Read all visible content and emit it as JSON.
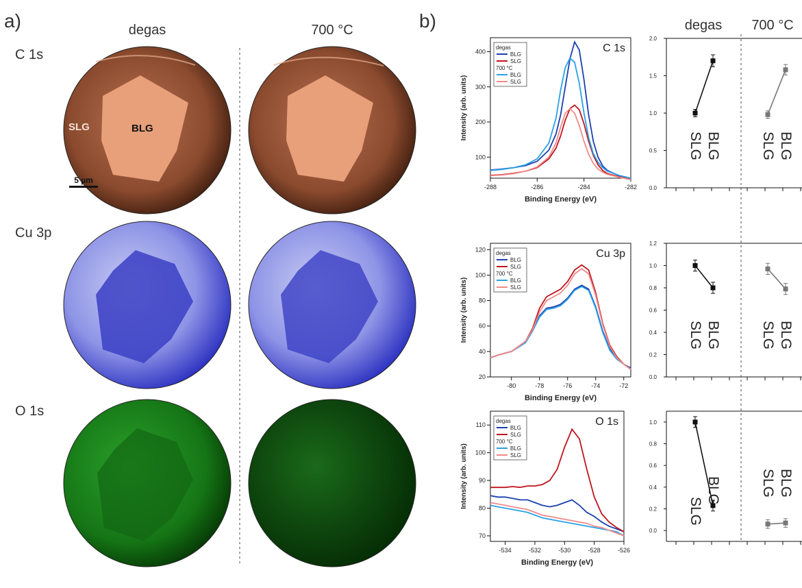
{
  "panel_a": {
    "label": "a)",
    "columns": [
      "degas",
      "700 °C"
    ],
    "rows": [
      "C 1s",
      "Cu 3p",
      "O 1s"
    ],
    "region_labels": {
      "slg": "SLG",
      "blg": "BLG"
    },
    "scale_bar": "5 µm",
    "colors": {
      "c1s": "#d98a5a",
      "cu3p": "#3a3fd0",
      "o1s": "#1f8f1f"
    }
  },
  "panel_b": {
    "label": "b)",
    "columns": [
      "degas",
      "700 °C"
    ],
    "xlabel": "Binding Energy (eV)",
    "ylabel": "Intensity (arb. units)",
    "legend": {
      "group1": "degas",
      "group2": "700 °C",
      "items": [
        "BLG",
        "SLG",
        "BLG",
        "SLG"
      ],
      "colors": [
        "#1a3fb0",
        "#c0141c",
        "#2aa0e6",
        "#f08a8a"
      ]
    },
    "x_labels": [
      "SLG",
      "BLG"
    ]
  },
  "chart_data": [
    {
      "type": "line",
      "title": "C 1s",
      "xlabel": "Binding Energy (eV)",
      "ylabel": "Intensity (arb. units)",
      "xlim": [
        -288,
        -282
      ],
      "ylim": [
        40,
        440
      ],
      "xticks": [
        -288,
        -286,
        -284,
        -282
      ],
      "yticks": [
        100,
        200,
        300,
        400
      ],
      "series": [
        {
          "name": "BLG",
          "group": "degas",
          "color": "#1a3fb0",
          "x": [
            -288,
            -287.5,
            -287,
            -286.5,
            -286,
            -285.5,
            -285.2,
            -285,
            -284.8,
            -284.6,
            -284.4,
            -284.2,
            -284,
            -283.8,
            -283.6,
            -283.4,
            -283.2,
            -283,
            -282.5,
            -282
          ],
          "y": [
            63,
            66,
            70,
            76,
            88,
            120,
            165,
            220,
            300,
            380,
            428,
            405,
            320,
            220,
            145,
            100,
            75,
            62,
            47,
            38
          ]
        },
        {
          "name": "SLG",
          "group": "degas",
          "color": "#c0141c",
          "x": [
            -288,
            -287.5,
            -287,
            -286.5,
            -286,
            -285.5,
            -285.2,
            -285,
            -284.8,
            -284.6,
            -284.4,
            -284.2,
            -284,
            -283.8,
            -283.6,
            -283.4,
            -283.2,
            -283,
            -282.5,
            -282
          ],
          "y": [
            48,
            50,
            54,
            60,
            70,
            95,
            125,
            160,
            205,
            238,
            248,
            235,
            195,
            145,
            105,
            78,
            62,
            53,
            44,
            37
          ]
        },
        {
          "name": "BLG",
          "group": "700 °C",
          "color": "#2aa0e6",
          "x": [
            -288,
            -287.5,
            -287,
            -286.5,
            -286,
            -285.5,
            -285.2,
            -285,
            -284.8,
            -284.6,
            -284.4,
            -284.2,
            -284,
            -283.8,
            -283.6,
            -283.4,
            -283.2,
            -283,
            -282.5,
            -282
          ],
          "y": [
            62,
            65,
            70,
            78,
            95,
            140,
            210,
            290,
            355,
            382,
            370,
            310,
            225,
            155,
            110,
            85,
            70,
            60,
            48,
            40
          ]
        },
        {
          "name": "SLG",
          "group": "700 °C",
          "color": "#f08a8a",
          "x": [
            -288,
            -287.5,
            -287,
            -286.5,
            -286,
            -285.5,
            -285.2,
            -285,
            -284.8,
            -284.6,
            -284.4,
            -284.2,
            -284,
            -283.8,
            -283.6,
            -283.4,
            -283.2,
            -283,
            -282.5,
            -282
          ],
          "y": [
            47,
            49,
            53,
            60,
            72,
            100,
            140,
            185,
            225,
            238,
            225,
            190,
            145,
            108,
            82,
            66,
            57,
            51,
            43,
            36
          ]
        }
      ]
    },
    {
      "type": "line",
      "title": "Cu 3p",
      "xlabel": "Binding Energy (eV)",
      "ylabel": "Intensity (arb. units)",
      "xlim": [
        -81.5,
        -71.5
      ],
      "ylim": [
        20,
        125
      ],
      "xticks": [
        -80,
        -78,
        -76,
        -74,
        -72
      ],
      "yticks": [
        20,
        40,
        60,
        80,
        100,
        120
      ],
      "series": [
        {
          "name": "BLG",
          "group": "degas",
          "color": "#1a3fb0",
          "x": [
            -81.5,
            -81,
            -80,
            -79,
            -78.5,
            -78,
            -77.5,
            -77,
            -76.5,
            -76,
            -75.5,
            -75,
            -74.5,
            -74,
            -73.5,
            -73,
            -72.5,
            -72,
            -71.5
          ],
          "y": [
            35,
            37,
            40,
            47,
            56,
            68,
            74,
            75,
            77,
            82,
            89,
            92,
            89,
            75,
            56,
            42,
            35,
            30,
            27
          ]
        },
        {
          "name": "SLG",
          "group": "degas",
          "color": "#c0141c",
          "x": [
            -81.5,
            -81,
            -80,
            -79,
            -78.5,
            -78,
            -77.5,
            -77,
            -76.5,
            -76,
            -75.5,
            -75,
            -74.5,
            -74,
            -73.5,
            -73,
            -72.5,
            -72,
            -71.5
          ],
          "y": [
            35,
            37,
            40,
            48,
            58,
            74,
            83,
            86,
            89,
            95,
            104,
            108,
            104,
            86,
            62,
            45,
            36,
            30,
            26
          ]
        },
        {
          "name": "BLG",
          "group": "700 °C",
          "color": "#2aa0e6",
          "x": [
            -81.5,
            -81,
            -80,
            -79,
            -78.5,
            -78,
            -77.5,
            -77,
            -76.5,
            -76,
            -75.5,
            -75,
            -74.5,
            -74,
            -73.5,
            -73,
            -72.5,
            -72,
            -71.5
          ],
          "y": [
            35,
            37,
            40,
            47,
            56,
            67,
            73,
            74,
            76,
            81,
            88,
            91,
            88,
            74,
            55,
            41,
            34,
            30,
            26
          ]
        },
        {
          "name": "SLG",
          "group": "700 °C",
          "color": "#f08a8a",
          "x": [
            -81.5,
            -81,
            -80,
            -79,
            -78.5,
            -78,
            -77.5,
            -77,
            -76.5,
            -76,
            -75.5,
            -75,
            -74.5,
            -74,
            -73.5,
            -73,
            -72.5,
            -72,
            -71.5
          ],
          "y": [
            35,
            37,
            40,
            48,
            57,
            71,
            80,
            83,
            86,
            92,
            101,
            105,
            101,
            84,
            61,
            44,
            35,
            30,
            26
          ]
        }
      ]
    },
    {
      "type": "line",
      "title": "O 1s",
      "xlabel": "Binding Energy (eV)",
      "ylabel": "Intensity (arb. units)",
      "xlim": [
        -535,
        -526
      ],
      "ylim": [
        68,
        115
      ],
      "xticks": [
        -534,
        -532,
        -530,
        -528,
        -526
      ],
      "yticks": [
        70,
        80,
        90,
        100,
        110
      ],
      "series": [
        {
          "name": "BLG",
          "group": "degas",
          "color": "#1a3fb0",
          "x": [
            -535,
            -534.5,
            -534,
            -533.5,
            -533,
            -532.5,
            -532,
            -531.5,
            -531,
            -530.5,
            -530,
            -529.5,
            -529,
            -528.5,
            -528,
            -527.5,
            -527,
            -526.5,
            -526
          ],
          "y": [
            84.5,
            84,
            84,
            83.5,
            83,
            83,
            82,
            81,
            80.5,
            81,
            82,
            83,
            81,
            78.5,
            77,
            75,
            73.5,
            72.5,
            71.5
          ]
        },
        {
          "name": "SLG",
          "group": "degas",
          "color": "#c0141c",
          "x": [
            -535,
            -534.5,
            -534,
            -533.5,
            -533,
            -532.5,
            -532,
            -531.5,
            -531,
            -530.5,
            -530,
            -529.5,
            -529,
            -528.5,
            -528,
            -527.5,
            -527,
            -526.5,
            -526
          ],
          "y": [
            87.5,
            87.5,
            87.5,
            87.8,
            87.5,
            88,
            88,
            88.5,
            90,
            94,
            102,
            108.5,
            105,
            94,
            84,
            78,
            75,
            73,
            71.5
          ]
        },
        {
          "name": "BLG",
          "group": "700 °C",
          "color": "#2aa0e6",
          "x": [
            -535,
            -534.5,
            -534,
            -533.5,
            -533,
            -532.5,
            -532,
            -531.5,
            -531,
            -530.5,
            -530,
            -529.5,
            -529,
            -528.5,
            -528,
            -527.5,
            -527,
            -526.5,
            -526
          ],
          "y": [
            81,
            80.5,
            80,
            79.5,
            79,
            78.5,
            77.5,
            76.5,
            76,
            75.5,
            75,
            74.5,
            74,
            73.5,
            73,
            72.5,
            72,
            71.5,
            70
          ]
        },
        {
          "name": "SLG",
          "group": "700 °C",
          "color": "#f08a8a",
          "x": [
            -535,
            -534.5,
            -534,
            -533.5,
            -533,
            -532.5,
            -532,
            -531.5,
            -531,
            -530.5,
            -530,
            -529.5,
            -529,
            -528.5,
            -528,
            -527.5,
            -527,
            -526.5,
            -526
          ],
          "y": [
            82,
            81.5,
            81,
            80.5,
            80,
            79.5,
            78.5,
            77.5,
            77,
            76.5,
            76,
            75.5,
            75,
            74.5,
            73.5,
            73,
            72,
            71,
            70
          ]
        }
      ]
    },
    {
      "type": "scatter",
      "xlabel": "",
      "ylabel": "",
      "ylim": [
        0,
        2.0
      ],
      "yticks": [
        0.0,
        0.5,
        1.0,
        1.5,
        2.0
      ],
      "series": [
        {
          "name": "degas",
          "color": "#111111",
          "categories": [
            "SLG",
            "BLG"
          ],
          "values": [
            1.0,
            1.7
          ],
          "errors": [
            0.05,
            0.08
          ]
        },
        {
          "name": "700 °C",
          "color": "#777777",
          "categories": [
            "SLG",
            "BLG"
          ],
          "values": [
            0.98,
            1.58
          ],
          "errors": [
            0.05,
            0.07
          ]
        }
      ]
    },
    {
      "type": "scatter",
      "xlabel": "",
      "ylabel": "",
      "ylim": [
        0,
        1.2
      ],
      "yticks": [
        0.0,
        0.2,
        0.4,
        0.6,
        0.8,
        1.0,
        1.2
      ],
      "series": [
        {
          "name": "degas",
          "color": "#111111",
          "categories": [
            "SLG",
            "BLG"
          ],
          "values": [
            1.0,
            0.8
          ],
          "errors": [
            0.05,
            0.05
          ]
        },
        {
          "name": "700 °C",
          "color": "#777777",
          "categories": [
            "SLG",
            "BLG"
          ],
          "values": [
            0.97,
            0.79
          ],
          "errors": [
            0.05,
            0.05
          ]
        }
      ]
    },
    {
      "type": "scatter",
      "xlabel": "",
      "ylabel": "",
      "ylim": [
        -0.1,
        1.1
      ],
      "yticks": [
        0.0,
        0.2,
        0.4,
        0.6,
        0.8,
        1.0
      ],
      "series": [
        {
          "name": "degas",
          "color": "#111111",
          "categories": [
            "SLG",
            "BLG"
          ],
          "values": [
            1.0,
            0.23
          ],
          "errors": [
            0.05,
            0.05
          ]
        },
        {
          "name": "700 °C",
          "color": "#777777",
          "categories": [
            "SLG",
            "BLG"
          ],
          "values": [
            0.06,
            0.07
          ],
          "errors": [
            0.04,
            0.04
          ]
        }
      ]
    }
  ]
}
